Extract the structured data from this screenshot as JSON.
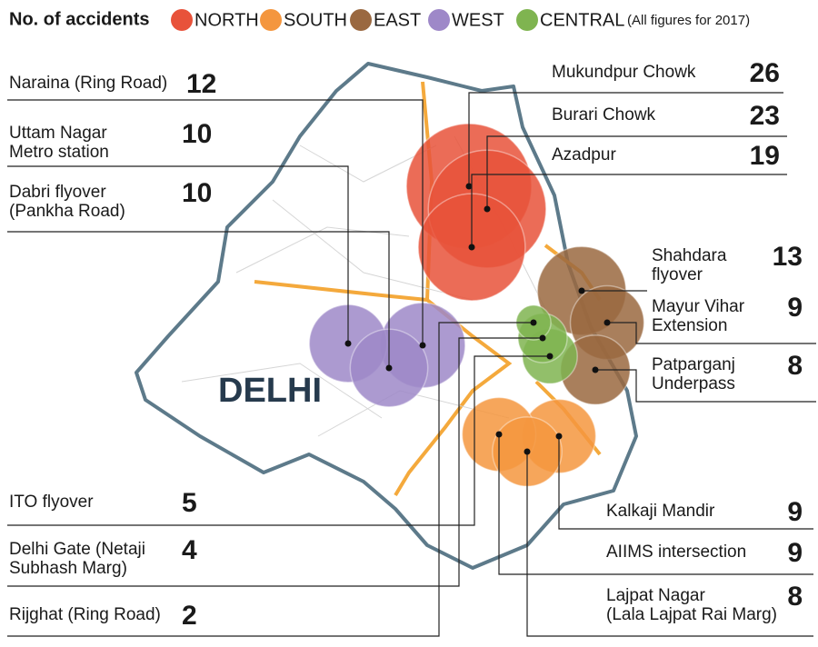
{
  "header": {
    "title": "No. of accidents",
    "note": "(All figures for 2017)"
  },
  "map_label": "DELHI",
  "regions": [
    {
      "label": "NORTH",
      "color": "#e8523a",
      "locations": [
        {
          "name_lines": [
            "Mukundpur Chowk"
          ],
          "count": 26
        },
        {
          "name_lines": [
            "Burari Chowk"
          ],
          "count": 23
        },
        {
          "name_lines": [
            "Azadpur"
          ],
          "count": 19
        }
      ]
    },
    {
      "label": "SOUTH",
      "color": "#f4963e",
      "locations": [
        {
          "name_lines": [
            "Kalkaji Mandir"
          ],
          "count": 9
        },
        {
          "name_lines": [
            "AIIMS intersection"
          ],
          "count": 9
        },
        {
          "name_lines": [
            "Lajpat Nagar",
            "(Lala Lajpat Rai Marg)"
          ],
          "count": 8
        }
      ]
    },
    {
      "label": "EAST",
      "color": "#9a6840",
      "locations": [
        {
          "name_lines": [
            "Shahdara",
            "flyover"
          ],
          "count": 13
        },
        {
          "name_lines": [
            "Mayur Vihar",
            "Extension"
          ],
          "count": 9
        },
        {
          "name_lines": [
            "Patparganj",
            "Underpass"
          ],
          "count": 8
        }
      ]
    },
    {
      "label": "WEST",
      "color": "#9e88c8",
      "locations": [
        {
          "name_lines": [
            "Naraina (Ring Road)"
          ],
          "count": 12
        },
        {
          "name_lines": [
            "Uttam Nagar",
            "Metro station"
          ],
          "count": 10
        },
        {
          "name_lines": [
            "Dabri flyover",
            "(Pankha Road)"
          ],
          "count": 10
        }
      ]
    },
    {
      "label": "CENTRAL",
      "color": "#7fb450",
      "locations": [
        {
          "name_lines": [
            "ITO flyover"
          ],
          "count": 5
        },
        {
          "name_lines": [
            "Delhi Gate (Netaji",
            "Subhash Marg)"
          ],
          "count": 4
        },
        {
          "name_lines": [
            "Rijghat (Ring Road)"
          ],
          "count": 2
        }
      ]
    }
  ]
}
